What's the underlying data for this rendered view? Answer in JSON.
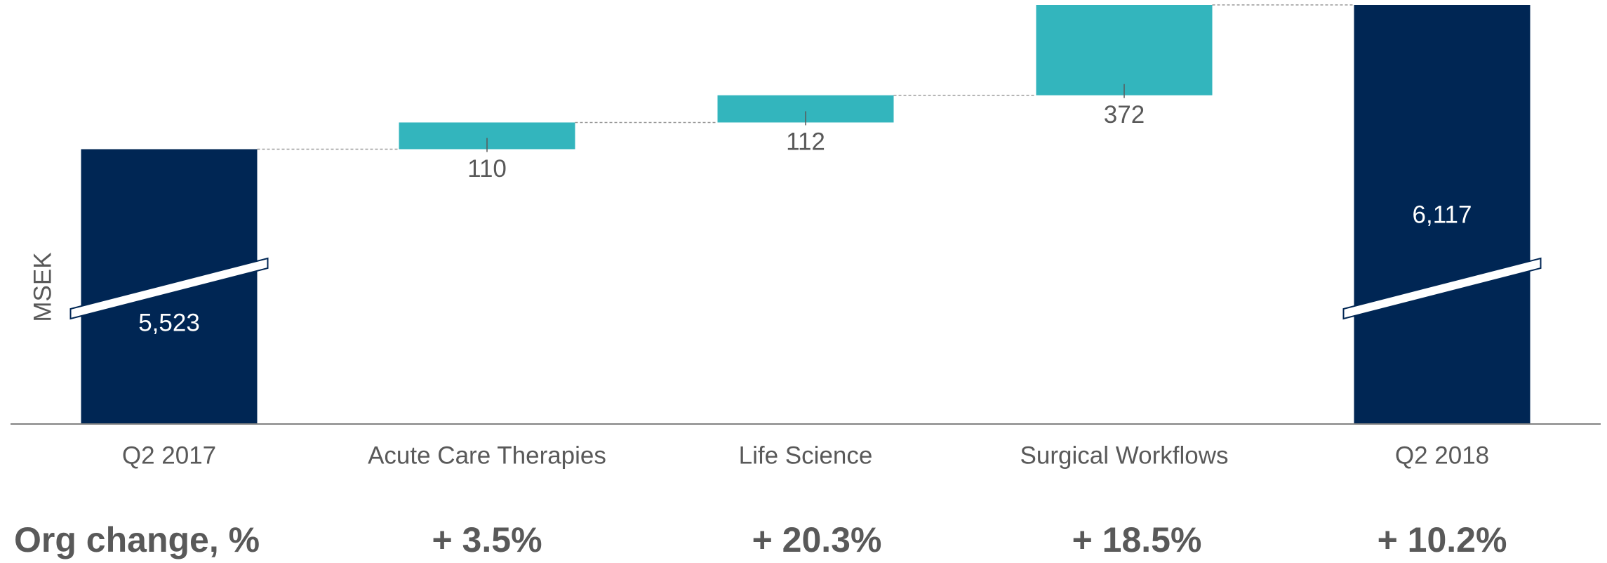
{
  "chart_data": {
    "type": "waterfall",
    "y_label": "MSEK",
    "categories": [
      "Q2 2017",
      "Acute Care Therapies",
      "Life Science",
      "Surgical Workflows",
      "Q2 2018"
    ],
    "values": [
      5523,
      110,
      112,
      372,
      6117
    ],
    "value_labels": [
      "5,523",
      "110",
      "112",
      "372",
      "6,117"
    ],
    "colors": {
      "total": "#002654",
      "increase": "#33b5bd"
    },
    "org_change": {
      "label": "Org change, %",
      "values": [
        "+ 3.5%",
        "+ 20.3%",
        "+ 18.5%",
        "+ 10.2%"
      ]
    }
  }
}
